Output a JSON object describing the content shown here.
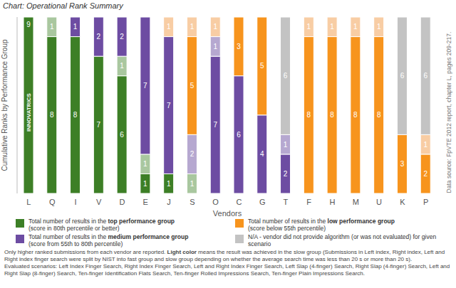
{
  "chart_data": {
    "type": "bar",
    "title": "Chart: Operational Rank Summary",
    "stacked": true,
    "data_labels": true,
    "tick_labels": "x",
    "grid": false,
    "x_label": "Vendors",
    "y_label": "Cumulative Ranks by Performance Group",
    "categories": [
      "L",
      "Q",
      "I",
      "V",
      "D",
      "E",
      "J",
      "S",
      "O",
      "C",
      "G",
      "T",
      "F",
      "H",
      "M",
      "U",
      "K",
      "P"
    ],
    "ylim": [
      0,
      9
    ],
    "yticks": [],
    "series": [
      {
        "name": "Total number of results in the top performance group",
        "bold": "top performance group",
        "note": "(score in 80th percentile or better)",
        "color": "#3d7f26",
        "values": [
          9,
          8,
          8,
          7,
          6,
          1,
          1,
          0,
          0,
          0,
          0,
          0,
          0,
          0,
          0,
          0,
          0,
          0
        ],
        "slow": {
          "color": "#a9c79f",
          "values": [
            0,
            1,
            0,
            0,
            1,
            1,
            0,
            1,
            0,
            0,
            0,
            0,
            0,
            0,
            0,
            0,
            0,
            0
          ]
        }
      },
      {
        "name": "Total number of results in the medium performance group",
        "bold": "medium performance group",
        "note": "(score from 55th to 80th percentile)",
        "color": "#6d4ca2",
        "values": [
          0,
          0,
          1,
          2,
          2,
          7,
          7,
          0,
          7,
          6,
          4,
          2,
          0,
          0,
          0,
          0,
          0,
          0
        ],
        "slow": {
          "color": "#b6a8d0",
          "values": [
            0,
            0,
            0,
            0,
            0,
            0,
            0,
            2,
            1,
            0,
            0,
            1,
            0,
            0,
            0,
            0,
            0,
            0
          ]
        }
      },
      {
        "name": "Total number of results in the low performance group",
        "bold": "low performance group",
        "note": "(score below 55th percentile)",
        "color": "#f7941d",
        "values": [
          0,
          0,
          0,
          0,
          0,
          0,
          0,
          5,
          0,
          3,
          5,
          0,
          8,
          8,
          8,
          8,
          3,
          2
        ],
        "slow": {
          "color": "#f8cda4",
          "values": [
            0,
            0,
            0,
            0,
            0,
            0,
            1,
            1,
            1,
            0,
            0,
            0,
            1,
            1,
            1,
            1,
            0,
            1
          ]
        }
      },
      {
        "name": "N/A - vendor did not provide algorithm (or was not evaluated) for given scenario",
        "color": "#c3c3c3",
        "values": [
          0,
          0,
          0,
          0,
          0,
          0,
          0,
          0,
          0,
          0,
          0,
          6,
          0,
          0,
          0,
          0,
          6,
          6
        ]
      }
    ],
    "annotations": [
      {
        "category": "L",
        "text": "INNOVATRICS"
      }
    ],
    "source": "Data source: FpVTE 2012 report, chapter L, pages 209-217.",
    "footnotes": [
      {
        "text": "Only higher ranked submissions from each vendor are reported. Light color means the result was achieved in the slow group (Submissions in Left index, Right index, Left and Right index finger search were split by NIST into fast group and slow group depending on whether the average search time was less than 20 s or more than 20 s).",
        "bold": "Light color"
      },
      {
        "text": "Evaluated scenarios: Left Index Finger Search, Right Index Finger Search, Left and Right Index Finger Search, Left Slap (4-finger) Search, Right Slap (4-finger) Search, Left and Right Slap (8-finger) Search, Ten-finger Identification Flats Search, Ten-finger Rolled Impressions Search, Ten-finger Plain Impressions Search."
      }
    ]
  }
}
